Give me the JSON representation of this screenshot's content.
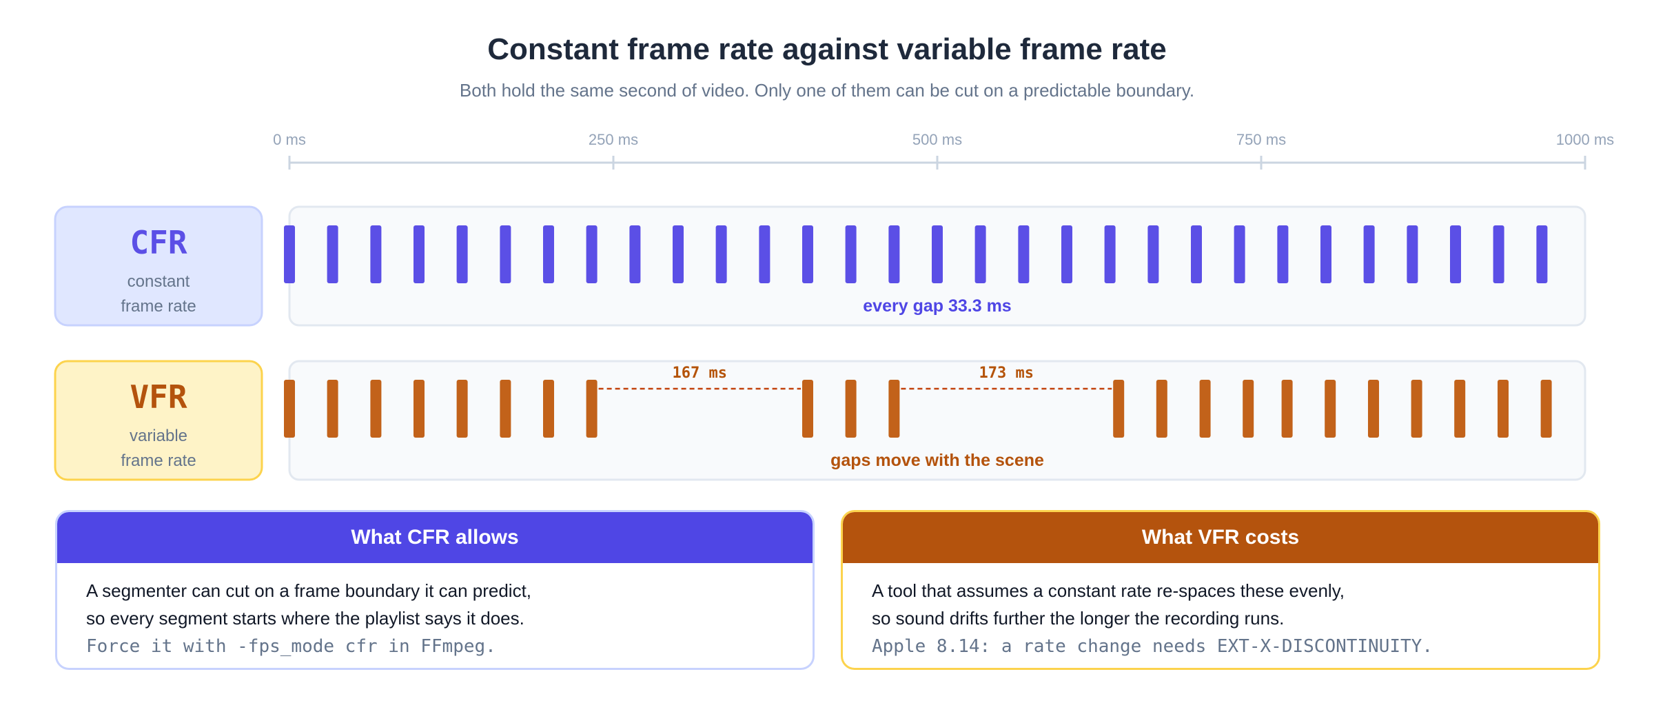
{
  "title": "Constant frame rate against variable frame rate",
  "subtitle": "Both hold the same second of video. Only one of them can be cut on a predictable boundary.",
  "axis": {
    "ticks_ms": [
      0,
      250,
      500,
      750,
      1000
    ],
    "tick_labels": [
      "0 ms",
      "250 ms",
      "500 ms",
      "750 ms",
      "1000 ms"
    ],
    "range_ms": [
      0,
      1000
    ]
  },
  "cfr": {
    "abbr": "CFR",
    "desc_line1": "constant",
    "desc_line2": "frame rate",
    "caption": "every gap 33.3 ms",
    "frame_times_ms": [
      0,
      33.3,
      66.7,
      100,
      133.3,
      166.7,
      200,
      233.3,
      266.7,
      300,
      333.3,
      366.7,
      400,
      433.3,
      466.7,
      500,
      533.3,
      566.7,
      600,
      633.3,
      666.7,
      700,
      733.3,
      766.7,
      800,
      833.3,
      866.7,
      900,
      933.3,
      966.7
    ]
  },
  "vfr": {
    "abbr": "VFR",
    "desc_line1": "variable",
    "desc_line2": "frame rate",
    "caption": "gaps move with the scene",
    "frame_times_ms": [
      0,
      33.3,
      66.7,
      100,
      133.3,
      166.7,
      200,
      233.3,
      400,
      433.3,
      466.7,
      640,
      673.3,
      706.7,
      740,
      770,
      803.3,
      836.7,
      870,
      903.3,
      936.7,
      970
    ],
    "gaps": [
      {
        "label": "167 ms",
        "from_ms": 233.3,
        "to_ms": 400
      },
      {
        "label": "173 ms",
        "from_ms": 466.7,
        "to_ms": 640
      }
    ]
  },
  "cards": {
    "cfr": {
      "title": "What CFR allows",
      "line1": "A segmenter can cut on a frame boundary it can predict,",
      "line2": "so every segment starts where the playlist says it does.",
      "code": "Force it with -fps_mode cfr in FFmpeg."
    },
    "vfr": {
      "title": "What VFR costs",
      "line1": "A tool that assumes a constant rate re-spaces these evenly,",
      "line2": "so sound drifts further the longer the recording runs.",
      "code": "Apple 8.14: a rate change needs EXT-X-DISCONTINUITY."
    }
  },
  "colors": {
    "cfr_accent": "#4f46e5",
    "cfr_frame": "#5b4fe6",
    "cfr_label_bg": "#e0e7ff",
    "cfr_label_border": "#c7d2fe",
    "vfr_accent": "#b4530d",
    "vfr_frame": "#c2621a",
    "vfr_label_bg": "#fef3c7",
    "vfr_label_border": "#fcd34d",
    "track_bg": "#f8fafc",
    "track_border": "#e2e8f0"
  }
}
